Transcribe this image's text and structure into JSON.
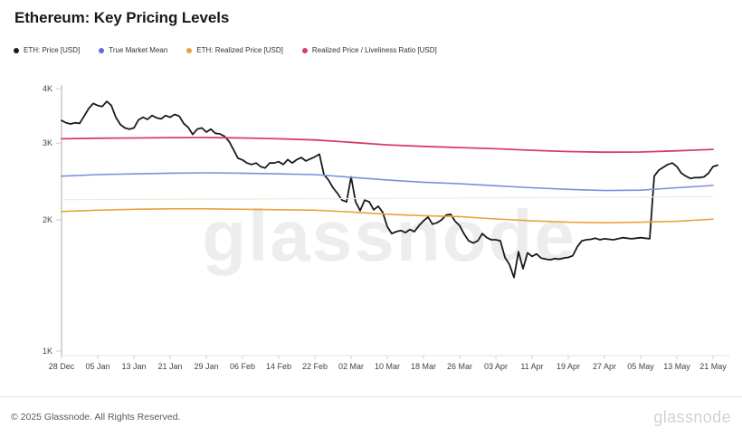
{
  "page": {
    "title": "Ethereum: Key Pricing Levels"
  },
  "watermark": {
    "text": "glassnode"
  },
  "legend": {
    "items": [
      {
        "label": "ETH: Price [USD]",
        "color": "#1b1b1b"
      },
      {
        "label": "True Market Mean",
        "color": "#5f6fd0"
      },
      {
        "label": "ETH: Realized Price [USD]",
        "color": "#e9a23b"
      },
      {
        "label": "Realized Price / Liveliness Ratio [USD]",
        "color": "#d53f63"
      }
    ]
  },
  "footer": {
    "copyright": "© 2025 Glassnode. All Rights Reserved.",
    "brand": "glassnode"
  },
  "chart_data": {
    "type": "line",
    "title": "Ethereum: Key Pricing Levels",
    "xlabel": "",
    "ylabel": "",
    "y_scale": "log",
    "grid": false,
    "legend_position": "top-left",
    "ylim": [
      1000,
      4000
    ],
    "y_tick_labels": [
      "4K",
      "3K",
      "2K",
      "1K"
    ],
    "y_tick_values": [
      4000,
      3000,
      2000,
      1000
    ],
    "x_tick_interval_days": 8,
    "x_tick_labels": [
      "28 Dec",
      "05 Jan",
      "13 Jan",
      "21 Jan",
      "29 Jan",
      "06 Feb",
      "14 Feb",
      "22 Feb",
      "02 Mar",
      "10 Mar",
      "18 Mar",
      "26 Mar",
      "03 Apr",
      "11 Apr",
      "19 Apr",
      "27 Apr",
      "05 May",
      "13 May",
      "21 May"
    ],
    "series": [
      {
        "name": "ETH: Price [USD]",
        "color": "#1b1b1b",
        "width": 1.8,
        "day_step": 1,
        "values": [
          3380,
          3340,
          3320,
          3340,
          3330,
          3460,
          3600,
          3700,
          3660,
          3640,
          3740,
          3660,
          3440,
          3310,
          3250,
          3230,
          3250,
          3390,
          3440,
          3400,
          3470,
          3430,
          3410,
          3470,
          3440,
          3490,
          3460,
          3330,
          3260,
          3140,
          3230,
          3250,
          3180,
          3230,
          3160,
          3150,
          3110,
          3030,
          2900,
          2770,
          2745,
          2700,
          2680,
          2700,
          2650,
          2630,
          2700,
          2700,
          2720,
          2680,
          2750,
          2700,
          2750,
          2780,
          2730,
          2760,
          2790,
          2830,
          2540,
          2470,
          2370,
          2300,
          2220,
          2200,
          2510,
          2200,
          2100,
          2220,
          2200,
          2110,
          2150,
          2080,
          1930,
          1860,
          1880,
          1890,
          1870,
          1900,
          1880,
          1940,
          1990,
          2030,
          1955,
          1970,
          2000,
          2050,
          2060,
          1985,
          1940,
          1855,
          1790,
          1770,
          1790,
          1860,
          1820,
          1800,
          1800,
          1790,
          1640,
          1580,
          1475,
          1690,
          1545,
          1680,
          1650,
          1670,
          1635,
          1625,
          1620,
          1630,
          1625,
          1635,
          1640,
          1655,
          1735,
          1790,
          1800,
          1805,
          1815,
          1800,
          1810,
          1805,
          1800,
          1810,
          1820,
          1815,
          1810,
          1815,
          1820,
          1815,
          1810,
          2520,
          2600,
          2640,
          2680,
          2700,
          2650,
          2560,
          2520,
          2490,
          2500,
          2500,
          2510,
          2560,
          2650,
          2670
        ]
      },
      {
        "name": "True Market Mean",
        "color": "#7b90da",
        "width": 1.6,
        "day_step": 8,
        "values": [
          2520,
          2540,
          2550,
          2560,
          2565,
          2560,
          2550,
          2540,
          2505,
          2470,
          2440,
          2420,
          2395,
          2370,
          2350,
          2335,
          2340,
          2370,
          2398
        ]
      },
      {
        "name": "ETH: Realized Price [USD]",
        "color": "#e9a23b",
        "width": 1.6,
        "day_step": 8,
        "values": [
          2090,
          2105,
          2115,
          2120,
          2120,
          2115,
          2110,
          2105,
          2085,
          2060,
          2045,
          2035,
          2010,
          1990,
          1975,
          1970,
          1975,
          1985,
          2008
        ]
      },
      {
        "name": "Realized Price / Liveliness Ratio [USD]",
        "color": "#d53f63",
        "width": 1.8,
        "day_step": 8,
        "values": [
          3070,
          3078,
          3082,
          3088,
          3090,
          3082,
          3070,
          3050,
          3012,
          2972,
          2948,
          2930,
          2912,
          2888,
          2870,
          2860,
          2862,
          2880,
          2902
        ]
      },
      {
        "name": "unlabeled-faint-level",
        "color": "#f3ecd6",
        "width": 1.2,
        "day_step": 72,
        "values": [
          2225,
          2240,
          2262
        ]
      }
    ]
  }
}
